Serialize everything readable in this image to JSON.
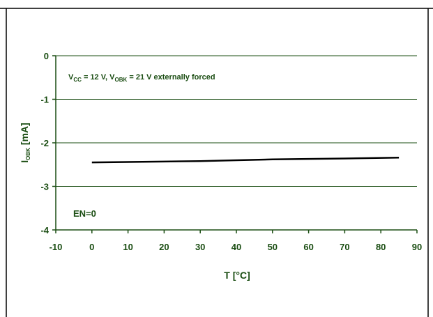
{
  "chart_data": {
    "type": "line",
    "title": "",
    "xlabel": "T [°C]",
    "ylabel": {
      "main": "I",
      "sub": "OBK",
      "unit": " [mA]"
    },
    "xlim": [
      -10,
      90
    ],
    "ylim": [
      -4,
      0
    ],
    "x_ticks": [
      -10,
      0,
      10,
      20,
      30,
      40,
      50,
      60,
      70,
      80,
      90
    ],
    "y_ticks": [
      0,
      -1,
      -2,
      -3,
      -4
    ],
    "grid": "horizontal",
    "series": [
      {
        "color": "#000000",
        "x": [
          0,
          10,
          20,
          30,
          40,
          50,
          60,
          70,
          85
        ],
        "y": [
          -2.45,
          -2.44,
          -2.43,
          -2.42,
          -2.4,
          -2.38,
          -2.37,
          -2.36,
          -2.34
        ]
      }
    ],
    "annotations": {
      "condition": {
        "parts": [
          {
            "t": "V",
            "sub": false
          },
          {
            "t": "CC",
            "sub": true
          },
          {
            "t": " = 12 V, V",
            "sub": false
          },
          {
            "t": "OBK",
            "sub": true
          },
          {
            "t": " = 21 V  externally forced",
            "sub": false
          }
        ]
      },
      "enable": "EN=0"
    },
    "colors": {
      "text": "#1a4d12",
      "grid": "#1a4d12",
      "line": "#000000"
    }
  }
}
